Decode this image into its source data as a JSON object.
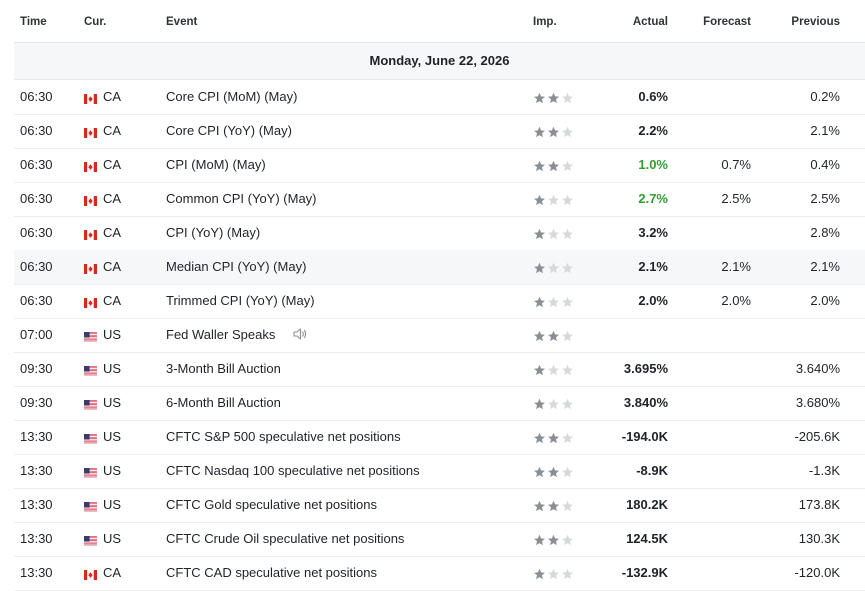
{
  "columns": {
    "time": "Time",
    "currency": "Cur.",
    "event": "Event",
    "importance": "Imp.",
    "actual": "Actual",
    "forecast": "Forecast",
    "previous": "Previous"
  },
  "date_header": "Monday, June 22, 2026",
  "colors": {
    "star_filled": "#8a8f96",
    "star_empty": "#d7dadd",
    "actual_beat": "#2e9e2e"
  },
  "rows": [
    {
      "time": "06:30",
      "flag": "CA",
      "currency": "CA",
      "event": "Core CPI (MoM) (May)",
      "importance": 2,
      "actual": "0.6%",
      "actual_color": "",
      "forecast": "",
      "previous": "0.2%",
      "speaker": false
    },
    {
      "time": "06:30",
      "flag": "CA",
      "currency": "CA",
      "event": "Core CPI (YoY) (May)",
      "importance": 2,
      "actual": "2.2%",
      "actual_color": "",
      "forecast": "",
      "previous": "2.1%",
      "speaker": false
    },
    {
      "time": "06:30",
      "flag": "CA",
      "currency": "CA",
      "event": "CPI (MoM) (May)",
      "importance": 2,
      "actual": "1.0%",
      "actual_color": "green",
      "forecast": "0.7%",
      "previous": "0.4%",
      "speaker": false
    },
    {
      "time": "06:30",
      "flag": "CA",
      "currency": "CA",
      "event": "Common CPI (YoY) (May)",
      "importance": 1,
      "actual": "2.7%",
      "actual_color": "green",
      "forecast": "2.5%",
      "previous": "2.5%",
      "speaker": false
    },
    {
      "time": "06:30",
      "flag": "CA",
      "currency": "CA",
      "event": "CPI (YoY) (May)",
      "importance": 1,
      "actual": "3.2%",
      "actual_color": "",
      "forecast": "",
      "previous": "2.8%",
      "speaker": false
    },
    {
      "time": "06:30",
      "flag": "CA",
      "currency": "CA",
      "event": "Median CPI (YoY) (May)",
      "importance": 1,
      "actual": "2.1%",
      "actual_color": "",
      "forecast": "2.1%",
      "previous": "2.1%",
      "speaker": false
    },
    {
      "time": "06:30",
      "flag": "CA",
      "currency": "CA",
      "event": "Trimmed CPI (YoY) (May)",
      "importance": 1,
      "actual": "2.0%",
      "actual_color": "",
      "forecast": "2.0%",
      "previous": "2.0%",
      "speaker": false
    },
    {
      "time": "07:00",
      "flag": "US",
      "currency": "US",
      "event": "Fed Waller Speaks",
      "importance": 2,
      "actual": "",
      "actual_color": "",
      "forecast": "",
      "previous": "",
      "speaker": true
    },
    {
      "time": "09:30",
      "flag": "US",
      "currency": "US",
      "event": "3-Month Bill Auction",
      "importance": 1,
      "actual": "3.695%",
      "actual_color": "",
      "forecast": "",
      "previous": "3.640%",
      "speaker": false
    },
    {
      "time": "09:30",
      "flag": "US",
      "currency": "US",
      "event": "6-Month Bill Auction",
      "importance": 1,
      "actual": "3.840%",
      "actual_color": "",
      "forecast": "",
      "previous": "3.680%",
      "speaker": false
    },
    {
      "time": "13:30",
      "flag": "US",
      "currency": "US",
      "event": "CFTC S&P 500 speculative net positions",
      "importance": 2,
      "actual": "-194.0K",
      "actual_color": "",
      "forecast": "",
      "previous": "-205.6K",
      "speaker": false
    },
    {
      "time": "13:30",
      "flag": "US",
      "currency": "US",
      "event": "CFTC Nasdaq 100 speculative net positions",
      "importance": 2,
      "actual": "-8.9K",
      "actual_color": "",
      "forecast": "",
      "previous": "-1.3K",
      "speaker": false
    },
    {
      "time": "13:30",
      "flag": "US",
      "currency": "US",
      "event": "CFTC Gold speculative net positions",
      "importance": 2,
      "actual": "180.2K",
      "actual_color": "",
      "forecast": "",
      "previous": "173.8K",
      "speaker": false
    },
    {
      "time": "13:30",
      "flag": "US",
      "currency": "US",
      "event": "CFTC Crude Oil speculative net positions",
      "importance": 2,
      "actual": "124.5K",
      "actual_color": "",
      "forecast": "",
      "previous": "130.3K",
      "speaker": false
    },
    {
      "time": "13:30",
      "flag": "CA",
      "currency": "CA",
      "event": "CFTC CAD speculative net positions",
      "importance": 1,
      "actual": "-132.9K",
      "actual_color": "",
      "forecast": "",
      "previous": "-120.0K",
      "speaker": false
    }
  ]
}
